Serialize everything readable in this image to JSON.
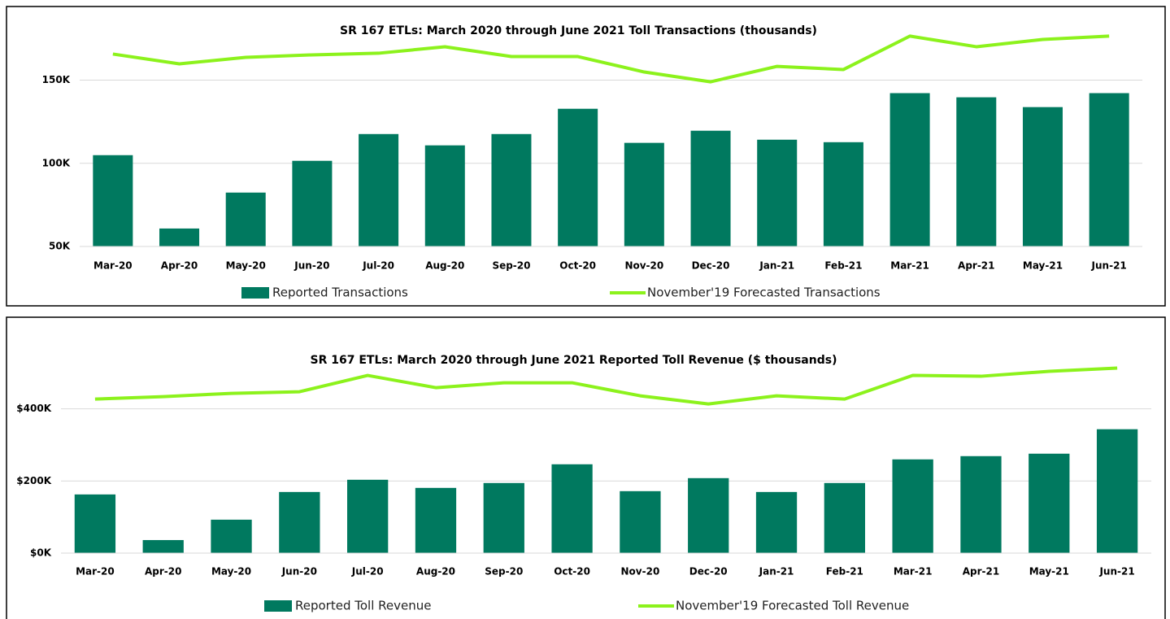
{
  "chart_data": [
    {
      "type": "bar_line",
      "title": "SR 167 ETLs: March 2020 through June 2021 Toll Transactions (thousands)",
      "categories": [
        "Mar-20",
        "Apr-20",
        "May-20",
        "Jun-20",
        "Jul-20",
        "Aug-20",
        "Sep-20",
        "Oct-20",
        "Nov-20",
        "Dec-20",
        "Jan-21",
        "Feb-21",
        "Mar-21",
        "Apr-21",
        "May-21",
        "Jun-21"
      ],
      "series": [
        {
          "name": "Reported Transactions",
          "type": "bar",
          "color": "#00795f",
          "values": [
            104900,
            60800,
            82400,
            101500,
            117600,
            110800,
            117600,
            132800,
            112300,
            119600,
            114200,
            112700,
            142200,
            139700,
            133800,
            142200
          ]
        },
        {
          "name": "November'19  Forecasted Transactions",
          "type": "line",
          "color": "#8cf21c",
          "values": [
            165700,
            159800,
            163700,
            165200,
            166200,
            170100,
            164200,
            164200,
            154900,
            149000,
            158300,
            156400,
            176500,
            170100,
            174500,
            176500
          ]
        }
      ],
      "ylim": [
        50000,
        185000
      ],
      "yticks": [
        {
          "value": 50000,
          "label": "50K"
        },
        {
          "value": 100000,
          "label": "100K"
        },
        {
          "value": 150000,
          "label": "150K"
        }
      ],
      "grid": true
    },
    {
      "type": "bar_line",
      "title": "SR 167 ETLs: March 2020 through June 2021 Reported Toll Revenue  ($ thousands)",
      "categories": [
        "Mar-20",
        "Apr-20",
        "May-20",
        "Jun-20",
        "Jul-20",
        "Aug-20",
        "Sep-20",
        "Oct-20",
        "Nov-20",
        "Dec-20",
        "Jan-21",
        "Feb-21",
        "Mar-21",
        "Apr-21",
        "May-21",
        "Jun-21"
      ],
      "series": [
        {
          "name": "Reported Toll Revenue",
          "type": "bar",
          "color": "#00795f",
          "values": [
            162700,
            36200,
            92700,
            169500,
            203400,
            180800,
            194400,
            246300,
            171800,
            207900,
            169500,
            194400,
            259900,
            268900,
            275700,
            343500
          ]
        },
        {
          "name": "November'19  Forecasted Toll Revenue",
          "type": "line",
          "color": "#8cf21c",
          "values": [
            427100,
            433900,
            443000,
            447500,
            492700,
            458800,
            472300,
            472300,
            436200,
            413600,
            436200,
            427100,
            492700,
            490400,
            504000,
            513000
          ]
        }
      ],
      "ylim": [
        0,
        530000
      ],
      "yticks": [
        {
          "value": 0,
          "label": "$0K"
        },
        {
          "value": 200000,
          "label": "$200K"
        },
        {
          "value": 400000,
          "label": "$400K"
        }
      ],
      "grid": true
    }
  ]
}
